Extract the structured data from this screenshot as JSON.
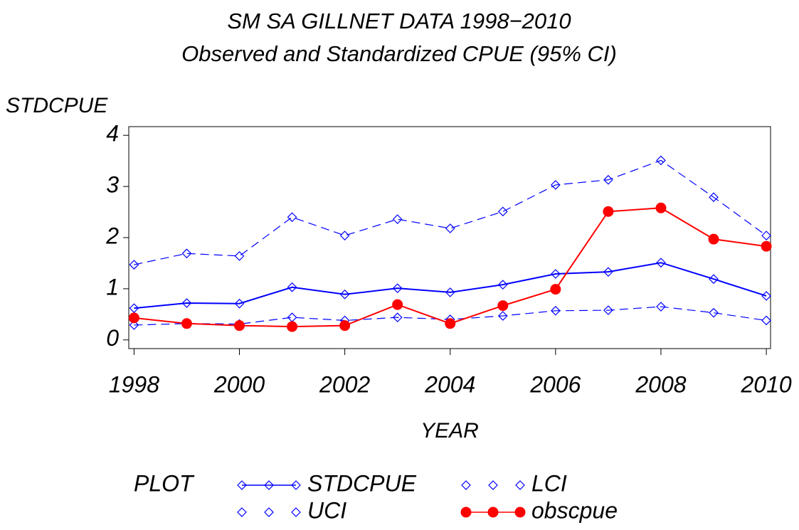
{
  "chart_data": {
    "type": "line",
    "title": "SM SA GILLNET DATA 1998−2010",
    "subtitle": "Observed and Standardized CPUE (95% CI)",
    "y_label": "STDCPUE",
    "x_label": "YEAR",
    "legend_title": "PLOT",
    "x": [
      1998,
      1999,
      2000,
      2001,
      2002,
      2003,
      2004,
      2005,
      2006,
      2007,
      2008,
      2009,
      2010
    ],
    "series": [
      {
        "name": "STDCPUE",
        "color": "#0000ff",
        "dashed": false,
        "marker": "diamond",
        "values": [
          0.62,
          0.72,
          0.71,
          1.03,
          0.89,
          1.01,
          0.93,
          1.08,
          1.29,
          1.33,
          1.51,
          1.19,
          0.86
        ]
      },
      {
        "name": "UCI",
        "color": "#0000ff",
        "dashed": true,
        "marker": "diamond",
        "values": [
          1.47,
          1.69,
          1.64,
          2.4,
          2.04,
          2.36,
          2.18,
          2.51,
          3.03,
          3.13,
          3.51,
          2.79,
          2.04
        ]
      },
      {
        "name": "LCI",
        "color": "#0000ff",
        "dashed": true,
        "marker": "diamond",
        "values": [
          0.29,
          0.32,
          0.31,
          0.44,
          0.38,
          0.44,
          0.4,
          0.47,
          0.57,
          0.58,
          0.65,
          0.53,
          0.38
        ]
      },
      {
        "name": "obscpue",
        "color": "#ff0000",
        "dashed": false,
        "marker": "circle",
        "values": [
          0.43,
          0.32,
          0.28,
          0.26,
          0.28,
          0.69,
          0.32,
          0.67,
          0.99,
          2.51,
          2.58,
          1.97,
          1.83
        ]
      }
    ],
    "xlim": [
      1997.9,
      2010.08
    ],
    "xticks": [
      1998,
      2000,
      2002,
      2004,
      2006,
      2008,
      2010
    ],
    "ylim": [
      -0.17,
      4.17
    ],
    "yticks": [
      0,
      1,
      2,
      3,
      4
    ]
  }
}
